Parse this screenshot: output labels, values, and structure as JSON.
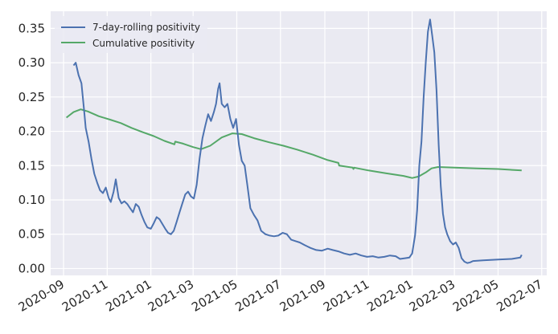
{
  "chart_data": {
    "type": "line",
    "title": "",
    "xlabel": "",
    "ylabel": "",
    "ylim": [
      -0.01,
      0.375
    ],
    "grid": true,
    "legend": "upper-left",
    "colors": {
      "background": "#EAEAF2",
      "grid": "#FFFFFF",
      "series1": "#4C72B0",
      "series2": "#55A868"
    },
    "x_ticks": [
      "2020-09",
      "2020-11",
      "2021-01",
      "2021-03",
      "2021-05",
      "2021-07",
      "2021-09",
      "2021-11",
      "2022-01",
      "2022-03",
      "2022-05",
      "2022-07"
    ],
    "y_ticks": [
      0.0,
      0.05,
      0.1,
      0.15,
      0.2,
      0.25,
      0.3,
      0.35
    ],
    "y_tick_labels": [
      "0.00",
      "0.05",
      "0.10",
      "0.15",
      "0.20",
      "0.25",
      "0.30",
      "0.35"
    ],
    "series": [
      {
        "name": "7-day-rolling positivity",
        "points": [
          [
            "2020-09-15",
            0.296
          ],
          [
            "2020-09-18",
            0.3
          ],
          [
            "2020-09-22",
            0.282
          ],
          [
            "2020-09-26",
            0.27
          ],
          [
            "2020-09-30",
            0.228
          ],
          [
            "2020-10-02",
            0.205
          ],
          [
            "2020-10-06",
            0.185
          ],
          [
            "2020-10-10",
            0.16
          ],
          [
            "2020-10-14",
            0.138
          ],
          [
            "2020-10-18",
            0.125
          ],
          [
            "2020-10-22",
            0.114
          ],
          [
            "2020-10-26",
            0.11
          ],
          [
            "2020-10-30",
            0.118
          ],
          [
            "2020-11-03",
            0.103
          ],
          [
            "2020-11-06",
            0.097
          ],
          [
            "2020-11-10",
            0.112
          ],
          [
            "2020-11-13",
            0.13
          ],
          [
            "2020-11-17",
            0.103
          ],
          [
            "2020-11-21",
            0.095
          ],
          [
            "2020-11-25",
            0.098
          ],
          [
            "2020-11-29",
            0.094
          ],
          [
            "2020-12-03",
            0.088
          ],
          [
            "2020-12-07",
            0.082
          ],
          [
            "2020-12-11",
            0.094
          ],
          [
            "2020-12-15",
            0.09
          ],
          [
            "2020-12-19",
            0.078
          ],
          [
            "2020-12-23",
            0.068
          ],
          [
            "2020-12-27",
            0.06
          ],
          [
            "2021-01-01",
            0.058
          ],
          [
            "2021-01-05",
            0.066
          ],
          [
            "2021-01-09",
            0.075
          ],
          [
            "2021-01-13",
            0.072
          ],
          [
            "2021-01-17",
            0.065
          ],
          [
            "2021-01-21",
            0.058
          ],
          [
            "2021-01-25",
            0.052
          ],
          [
            "2021-01-29",
            0.05
          ],
          [
            "2021-02-02",
            0.055
          ],
          [
            "2021-02-06",
            0.068
          ],
          [
            "2021-02-10",
            0.082
          ],
          [
            "2021-02-14",
            0.095
          ],
          [
            "2021-02-18",
            0.108
          ],
          [
            "2021-02-22",
            0.112
          ],
          [
            "2021-02-26",
            0.105
          ],
          [
            "2021-03-02",
            0.102
          ],
          [
            "2021-03-06",
            0.122
          ],
          [
            "2021-03-10",
            0.16
          ],
          [
            "2021-03-14",
            0.19
          ],
          [
            "2021-03-18",
            0.208
          ],
          [
            "2021-03-22",
            0.225
          ],
          [
            "2021-03-26",
            0.215
          ],
          [
            "2021-03-30",
            0.228
          ],
          [
            "2021-04-02",
            0.24
          ],
          [
            "2021-04-05",
            0.262
          ],
          [
            "2021-04-07",
            0.27
          ],
          [
            "2021-04-10",
            0.24
          ],
          [
            "2021-04-14",
            0.235
          ],
          [
            "2021-04-18",
            0.24
          ],
          [
            "2021-04-22",
            0.218
          ],
          [
            "2021-04-26",
            0.205
          ],
          [
            "2021-04-30",
            0.218
          ],
          [
            "2021-05-04",
            0.18
          ],
          [
            "2021-05-08",
            0.157
          ],
          [
            "2021-05-12",
            0.15
          ],
          [
            "2021-05-16",
            0.12
          ],
          [
            "2021-05-20",
            0.088
          ],
          [
            "2021-05-25",
            0.078
          ],
          [
            "2021-05-30",
            0.07
          ],
          [
            "2021-06-04",
            0.055
          ],
          [
            "2021-06-10",
            0.05
          ],
          [
            "2021-06-16",
            0.048
          ],
          [
            "2021-06-22",
            0.047
          ],
          [
            "2021-06-28",
            0.048
          ],
          [
            "2021-07-04",
            0.052
          ],
          [
            "2021-07-10",
            0.05
          ],
          [
            "2021-07-16",
            0.042
          ],
          [
            "2021-07-22",
            0.04
          ],
          [
            "2021-07-28",
            0.038
          ],
          [
            "2021-08-04",
            0.034
          ],
          [
            "2021-08-12",
            0.03
          ],
          [
            "2021-08-20",
            0.027
          ],
          [
            "2021-08-28",
            0.026
          ],
          [
            "2021-09-05",
            0.029
          ],
          [
            "2021-09-12",
            0.027
          ],
          [
            "2021-09-20",
            0.025
          ],
          [
            "2021-09-28",
            0.022
          ],
          [
            "2021-10-06",
            0.02
          ],
          [
            "2021-10-14",
            0.022
          ],
          [
            "2021-10-22",
            0.019
          ],
          [
            "2021-10-30",
            0.017
          ],
          [
            "2021-11-07",
            0.018
          ],
          [
            "2021-11-15",
            0.016
          ],
          [
            "2021-11-23",
            0.017
          ],
          [
            "2021-12-01",
            0.019
          ],
          [
            "2021-12-09",
            0.018
          ],
          [
            "2021-12-15",
            0.014
          ],
          [
            "2021-12-22",
            0.015
          ],
          [
            "2021-12-28",
            0.016
          ],
          [
            "2022-01-01",
            0.022
          ],
          [
            "2022-01-05",
            0.048
          ],
          [
            "2022-01-08",
            0.085
          ],
          [
            "2022-01-11",
            0.15
          ],
          [
            "2022-01-14",
            0.185
          ],
          [
            "2022-01-17",
            0.25
          ],
          [
            "2022-01-20",
            0.3
          ],
          [
            "2022-01-23",
            0.345
          ],
          [
            "2022-01-26",
            0.363
          ],
          [
            "2022-01-29",
            0.34
          ],
          [
            "2022-02-01",
            0.315
          ],
          [
            "2022-02-04",
            0.26
          ],
          [
            "2022-02-07",
            0.18
          ],
          [
            "2022-02-10",
            0.12
          ],
          [
            "2022-02-13",
            0.08
          ],
          [
            "2022-02-16",
            0.06
          ],
          [
            "2022-02-19",
            0.05
          ],
          [
            "2022-02-23",
            0.04
          ],
          [
            "2022-02-27",
            0.035
          ],
          [
            "2022-03-03",
            0.038
          ],
          [
            "2022-03-07",
            0.03
          ],
          [
            "2022-03-11",
            0.015
          ],
          [
            "2022-03-15",
            0.01
          ],
          [
            "2022-03-19",
            0.008
          ],
          [
            "2022-03-23",
            0.009
          ],
          [
            "2022-03-27",
            0.011
          ],
          [
            "2022-04-10",
            0.012
          ],
          [
            "2022-05-01",
            0.013
          ],
          [
            "2022-05-20",
            0.014
          ],
          [
            "2022-06-01",
            0.016
          ],
          [
            "2022-06-03",
            0.02
          ]
        ]
      },
      {
        "name": "Cumulative positivity",
        "points": [
          [
            "2020-09-05",
            0.22
          ],
          [
            "2020-09-15",
            0.228
          ],
          [
            "2020-09-25",
            0.232
          ],
          [
            "2020-10-05",
            0.229
          ],
          [
            "2020-10-20",
            0.222
          ],
          [
            "2020-11-05",
            0.217
          ],
          [
            "2020-11-20",
            0.212
          ],
          [
            "2020-12-05",
            0.205
          ],
          [
            "2020-12-20",
            0.199
          ],
          [
            "2021-01-05",
            0.193
          ],
          [
            "2021-01-20",
            0.186
          ],
          [
            "2021-02-03",
            0.181
          ],
          [
            "2021-02-04",
            0.185
          ],
          [
            "2021-02-15",
            0.182
          ],
          [
            "2021-03-01",
            0.177
          ],
          [
            "2021-03-12",
            0.174
          ],
          [
            "2021-03-25",
            0.179
          ],
          [
            "2021-04-10",
            0.191
          ],
          [
            "2021-04-25",
            0.197
          ],
          [
            "2021-05-08",
            0.196
          ],
          [
            "2021-05-25",
            0.19
          ],
          [
            "2021-06-15",
            0.184
          ],
          [
            "2021-07-05",
            0.179
          ],
          [
            "2021-07-25",
            0.173
          ],
          [
            "2021-08-15",
            0.166
          ],
          [
            "2021-09-05",
            0.158
          ],
          [
            "2021-09-20",
            0.154
          ],
          [
            "2021-09-21",
            0.15
          ],
          [
            "2021-10-10",
            0.147
          ],
          [
            "2021-10-11",
            0.145
          ],
          [
            "2021-10-12",
            0.147
          ],
          [
            "2021-11-01",
            0.143
          ],
          [
            "2021-11-25",
            0.139
          ],
          [
            "2021-12-20",
            0.135
          ],
          [
            "2022-01-01",
            0.132
          ],
          [
            "2022-01-10",
            0.134
          ],
          [
            "2022-01-20",
            0.14
          ],
          [
            "2022-01-28",
            0.146
          ],
          [
            "2022-02-06",
            0.148
          ],
          [
            "2022-03-01",
            0.147
          ],
          [
            "2022-04-01",
            0.146
          ],
          [
            "2022-05-01",
            0.145
          ],
          [
            "2022-06-03",
            0.143
          ]
        ]
      }
    ]
  }
}
